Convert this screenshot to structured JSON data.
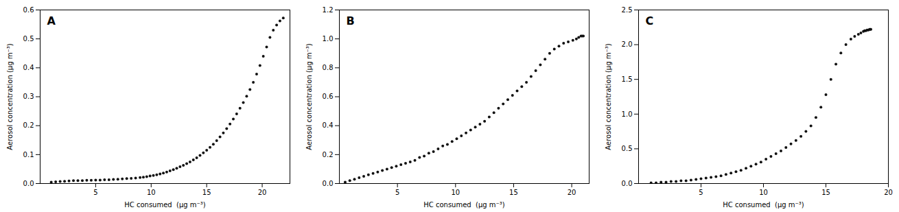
{
  "chart_data": [
    {
      "type": "scatter",
      "annotation": "A",
      "xlabel": "HC consumed  (μg m⁻³)",
      "ylabel": "Aerosol concentration (μg m⁻³)",
      "xlim": [
        0,
        22.5
      ],
      "ylim": [
        0,
        0.6
      ],
      "xticks": [
        5,
        10,
        15,
        20
      ],
      "yticks": [
        {
          "value": 0.0,
          "label": "0.0"
        },
        0.1,
        0.2,
        0.3,
        0.4,
        0.5,
        0.6
      ],
      "color": "#111111",
      "x": [
        1.0,
        1.4,
        1.8,
        2.2,
        2.6,
        3.0,
        3.4,
        3.8,
        4.2,
        4.6,
        5.0,
        5.4,
        5.8,
        6.2,
        6.6,
        7.0,
        7.4,
        7.8,
        8.2,
        8.6,
        9.0,
        9.3,
        9.6,
        9.9,
        10.2,
        10.5,
        10.8,
        11.1,
        11.4,
        11.7,
        12.0,
        12.3,
        12.6,
        12.9,
        13.2,
        13.5,
        13.8,
        14.1,
        14.4,
        14.7,
        15.0,
        15.3,
        15.6,
        15.9,
        16.2,
        16.5,
        16.8,
        17.1,
        17.4,
        17.7,
        18.0,
        18.3,
        18.6,
        18.9,
        19.2,
        19.5,
        19.8,
        20.1,
        20.4,
        20.7,
        21.0,
        21.3,
        21.6,
        21.9
      ],
      "values": [
        0.005,
        0.006,
        0.007,
        0.008,
        0.009,
        0.01,
        0.01,
        0.01,
        0.011,
        0.011,
        0.012,
        0.012,
        0.013,
        0.013,
        0.014,
        0.015,
        0.016,
        0.017,
        0.018,
        0.019,
        0.021,
        0.022,
        0.024,
        0.026,
        0.028,
        0.03,
        0.033,
        0.036,
        0.04,
        0.044,
        0.048,
        0.053,
        0.058,
        0.063,
        0.069,
        0.075,
        0.082,
        0.089,
        0.097,
        0.106,
        0.115,
        0.125,
        0.136,
        0.148,
        0.161,
        0.175,
        0.19,
        0.206,
        0.223,
        0.241,
        0.26,
        0.28,
        0.302,
        0.325,
        0.35,
        0.378,
        0.408,
        0.44,
        0.472,
        0.505,
        0.53,
        0.548,
        0.562,
        0.572
      ]
    },
    {
      "type": "scatter",
      "annotation": "B",
      "xlabel": "HC consumed  (μg m⁻³)",
      "ylabel": "Aerosol concentration (μg m⁻³)",
      "xlim": [
        0,
        21.5
      ],
      "ylim": [
        0,
        1.2
      ],
      "xticks": [
        5,
        10,
        15,
        20
      ],
      "yticks": [
        {
          "value": 0.0,
          "label": "0.0"
        },
        0.2,
        0.4,
        0.6,
        0.8,
        {
          "value": 1.0,
          "label": "1.0"
        },
        1.2
      ],
      "color": "#111111",
      "x": [
        0.5,
        0.9,
        1.3,
        1.7,
        2.1,
        2.5,
        2.9,
        3.3,
        3.7,
        4.1,
        4.5,
        4.9,
        5.3,
        5.7,
        6.1,
        6.5,
        6.9,
        7.3,
        7.7,
        8.1,
        8.5,
        8.9,
        9.3,
        9.7,
        10.1,
        10.5,
        10.9,
        11.3,
        11.7,
        12.1,
        12.5,
        12.9,
        13.3,
        13.7,
        14.1,
        14.5,
        14.9,
        15.3,
        15.7,
        16.1,
        16.5,
        16.9,
        17.3,
        17.7,
        18.1,
        18.5,
        18.9,
        19.3,
        19.7,
        20.1,
        20.4,
        20.6,
        20.8,
        20.9,
        21.0
      ],
      "values": [
        0.01,
        0.02,
        0.03,
        0.04,
        0.05,
        0.06,
        0.07,
        0.08,
        0.09,
        0.1,
        0.11,
        0.12,
        0.13,
        0.14,
        0.15,
        0.16,
        0.18,
        0.19,
        0.21,
        0.22,
        0.24,
        0.26,
        0.27,
        0.29,
        0.31,
        0.33,
        0.35,
        0.37,
        0.39,
        0.41,
        0.43,
        0.46,
        0.49,
        0.52,
        0.55,
        0.58,
        0.61,
        0.64,
        0.67,
        0.7,
        0.74,
        0.78,
        0.82,
        0.86,
        0.9,
        0.93,
        0.95,
        0.97,
        0.98,
        0.99,
        1.0,
        1.01,
        1.02,
        1.02,
        1.02
      ]
    },
    {
      "type": "scatter",
      "annotation": "C",
      "xlabel": "HC consumed  (μg m⁻³)",
      "ylabel": "Aerosol concentration (μg m⁻³)",
      "xlim": [
        0,
        20.0
      ],
      "ylim": [
        0,
        2.5
      ],
      "xticks": [
        5,
        10,
        15,
        20
      ],
      "yticks": [
        {
          "value": 0.0,
          "label": "0.0"
        },
        0.5,
        {
          "value": 1.0,
          "label": "1.0"
        },
        1.5,
        {
          "value": 2.0,
          "label": "2.0"
        },
        2.5
      ],
      "color": "#111111",
      "x": [
        1.0,
        1.4,
        1.8,
        2.2,
        2.6,
        3.0,
        3.4,
        3.8,
        4.2,
        4.6,
        5.0,
        5.4,
        5.8,
        6.2,
        6.6,
        7.0,
        7.4,
        7.8,
        8.2,
        8.6,
        9.0,
        9.4,
        9.8,
        10.2,
        10.6,
        11.0,
        11.4,
        11.8,
        12.2,
        12.6,
        13.0,
        13.4,
        13.8,
        14.2,
        14.6,
        15.0,
        15.4,
        15.8,
        16.2,
        16.6,
        17.0,
        17.3,
        17.6,
        17.8,
        18.0,
        18.1,
        18.2,
        18.3,
        18.4,
        18.5,
        18.55,
        18.6
      ],
      "values": [
        0.01,
        0.01,
        0.02,
        0.02,
        0.03,
        0.03,
        0.04,
        0.04,
        0.05,
        0.06,
        0.07,
        0.08,
        0.09,
        0.1,
        0.11,
        0.13,
        0.15,
        0.17,
        0.19,
        0.22,
        0.25,
        0.28,
        0.31,
        0.35,
        0.39,
        0.43,
        0.47,
        0.52,
        0.57,
        0.62,
        0.68,
        0.75,
        0.83,
        0.95,
        1.1,
        1.28,
        1.5,
        1.72,
        1.88,
        2.0,
        2.08,
        2.12,
        2.15,
        2.17,
        2.19,
        2.2,
        2.2,
        2.21,
        2.21,
        2.22,
        2.22,
        2.22
      ]
    }
  ]
}
